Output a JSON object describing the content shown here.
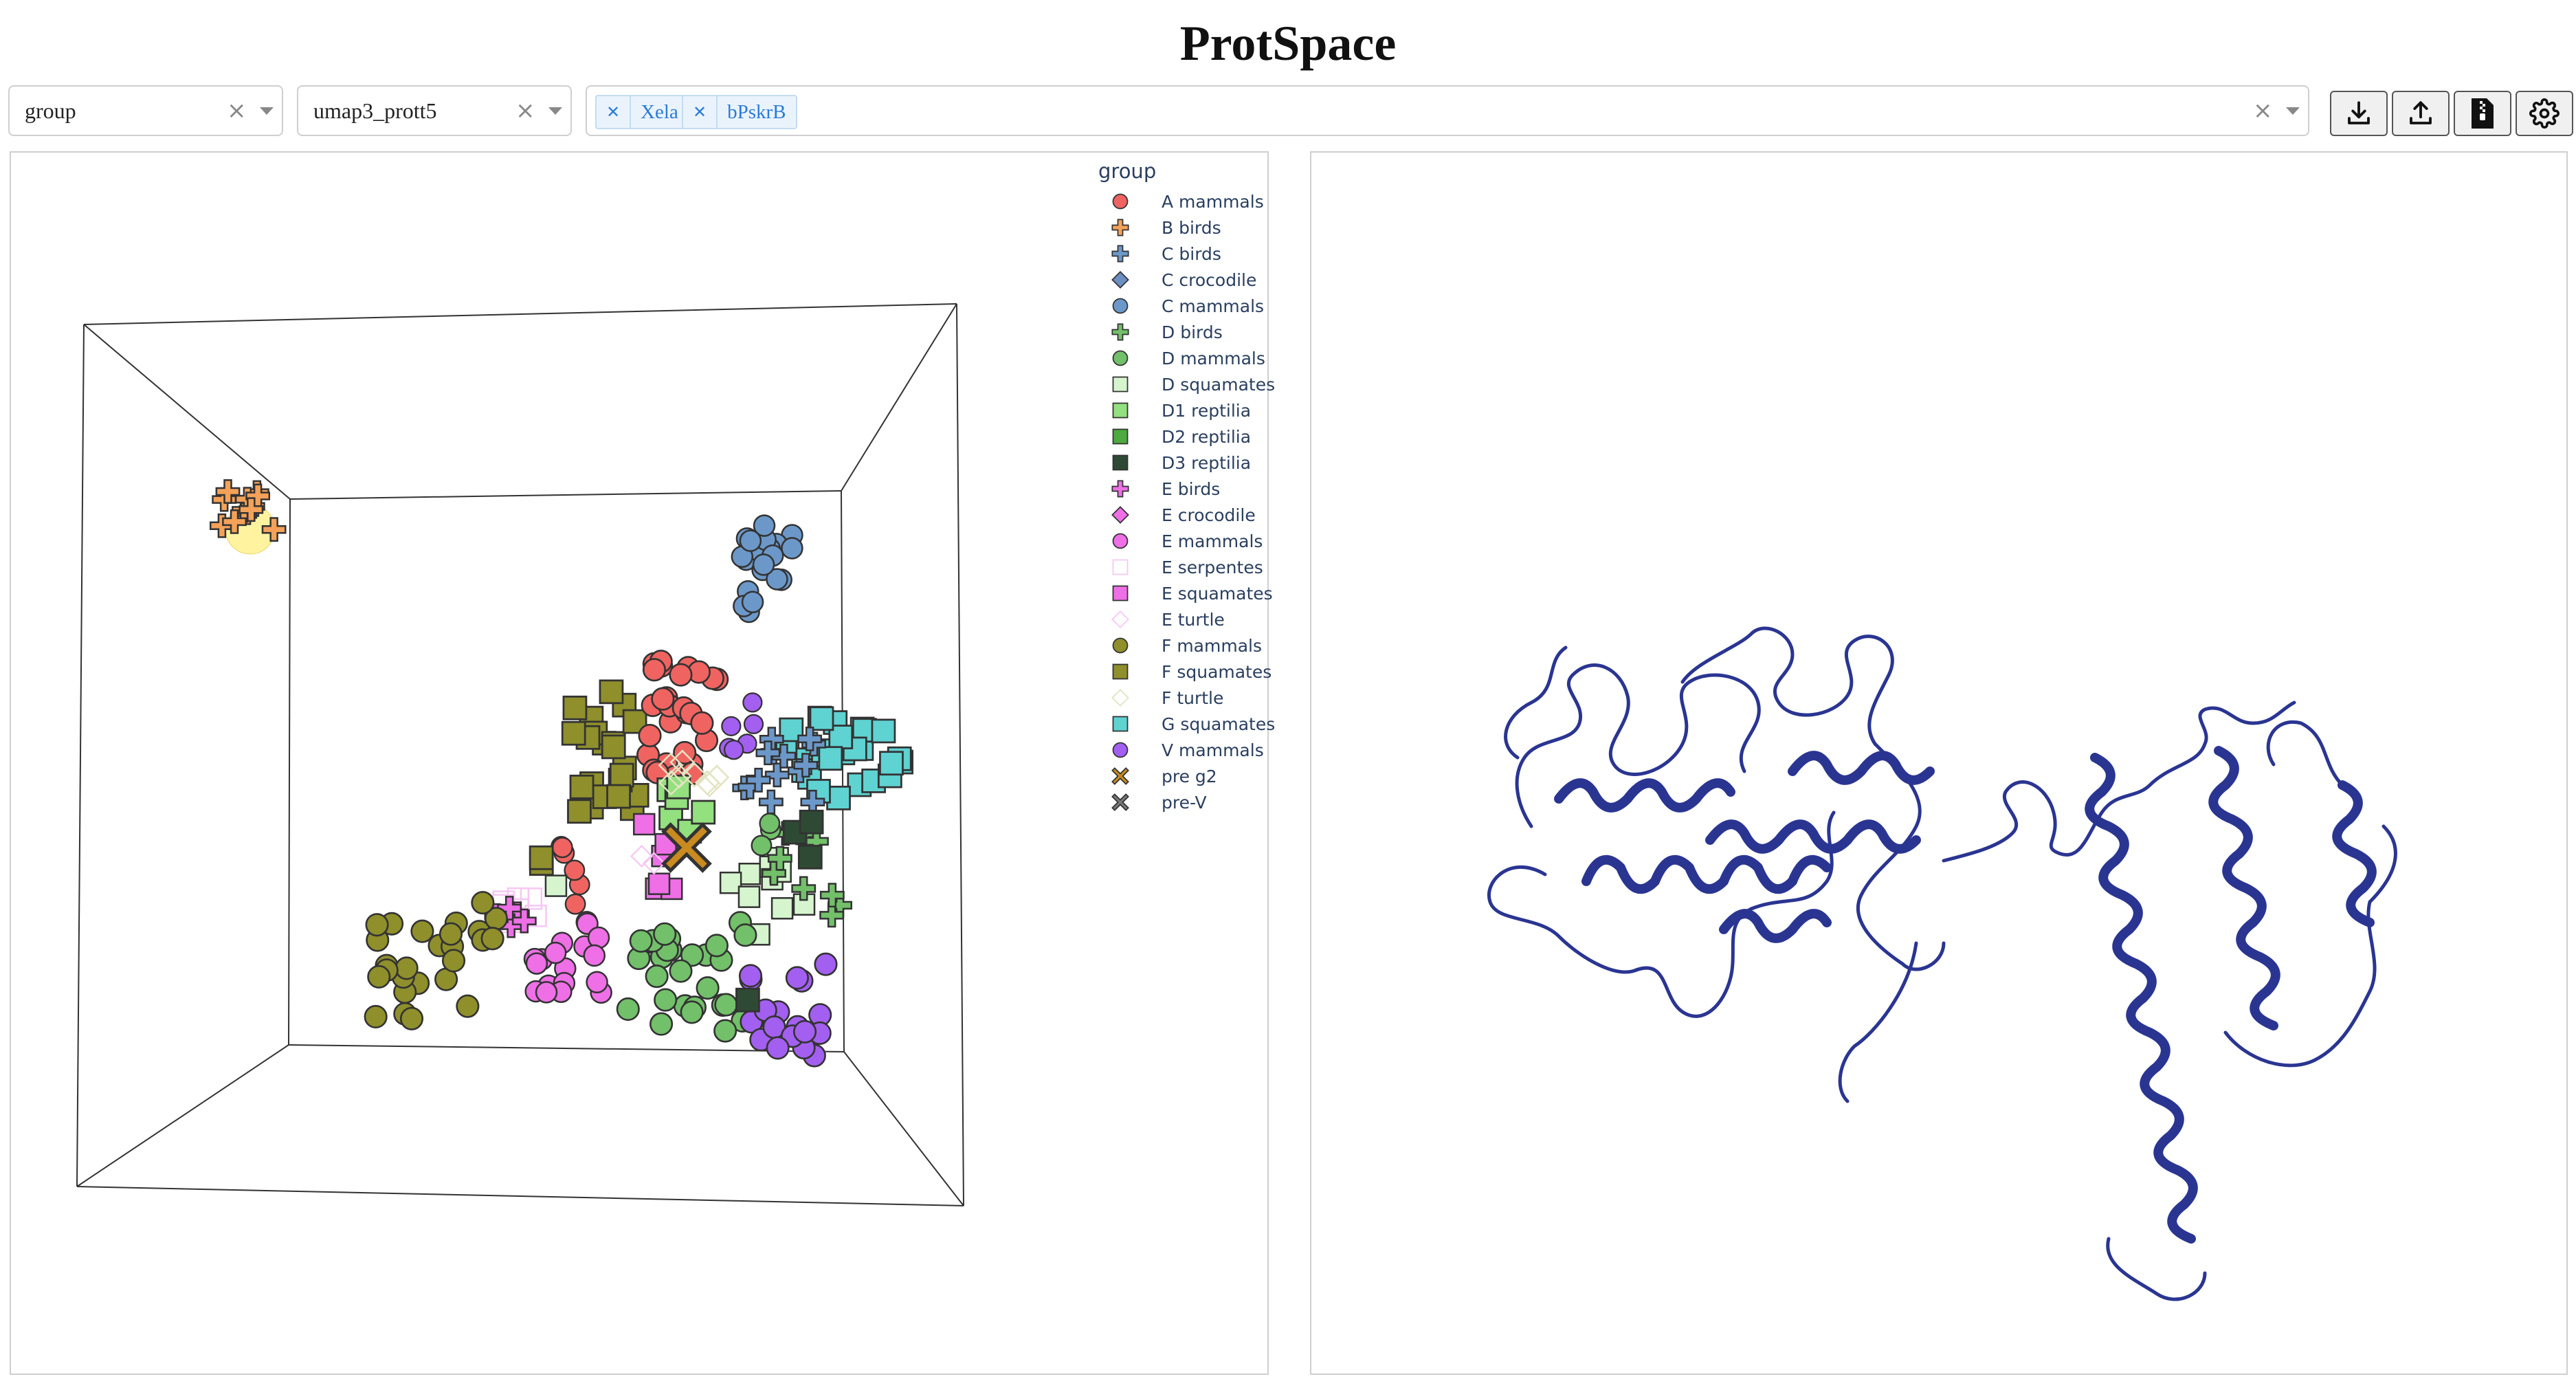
{
  "app": {
    "title": "ProtSpace"
  },
  "controls": {
    "feature_dropdown": {
      "value": "group"
    },
    "projection_dropdown": {
      "value": "umap3_prott5"
    },
    "protein_search": {
      "tags": [
        "Xela",
        "bPskrB"
      ]
    }
  },
  "toolbar": {
    "buttons": [
      {
        "name": "download-icon"
      },
      {
        "name": "upload-icon"
      },
      {
        "name": "download-file-icon"
      },
      {
        "name": "gear-icon"
      }
    ]
  },
  "legend": {
    "title": "group",
    "items": [
      {
        "label": "A mammals",
        "symbol": "circle",
        "color": "#ef6461",
        "fill": true
      },
      {
        "label": "B birds",
        "symbol": "cross",
        "color": "#f4a259",
        "fill": true
      },
      {
        "label": "C birds",
        "symbol": "cross",
        "color": "#6c98c9",
        "fill": true
      },
      {
        "label": "C crocodile",
        "symbol": "diamond",
        "color": "#6c8ec2",
        "fill": true
      },
      {
        "label": "C mammals",
        "symbol": "circle",
        "color": "#6c98c9",
        "fill": true
      },
      {
        "label": "D birds",
        "symbol": "cross",
        "color": "#72c06a",
        "fill": true
      },
      {
        "label": "D mammals",
        "symbol": "circle",
        "color": "#72c06a",
        "fill": true
      },
      {
        "label": "D squamates",
        "symbol": "square",
        "color": "#d6f5cf",
        "fill": true
      },
      {
        "label": "D1 reptilia",
        "symbol": "square",
        "color": "#93e07e",
        "fill": true
      },
      {
        "label": "D2 reptilia",
        "symbol": "square",
        "color": "#4caa3e",
        "fill": true
      },
      {
        "label": "D3 reptilia",
        "symbol": "square",
        "color": "#2f4a34",
        "fill": true
      },
      {
        "label": "E birds",
        "symbol": "cross",
        "color": "#ee6fe6",
        "fill": true
      },
      {
        "label": "E crocodile",
        "symbol": "diamond",
        "color": "#ee6fe6",
        "fill": true
      },
      {
        "label": "E mammals",
        "symbol": "circle",
        "color": "#ee6fe6",
        "fill": true
      },
      {
        "label": "E serpentes",
        "symbol": "square",
        "color": "#f7c7f3",
        "fill": false
      },
      {
        "label": "E squamates",
        "symbol": "square",
        "color": "#ee6fe6",
        "fill": true
      },
      {
        "label": "E turtle",
        "symbol": "diamond",
        "color": "#f7c7f3",
        "fill": false
      },
      {
        "label": "F mammals",
        "symbol": "circle",
        "color": "#8f8f2c",
        "fill": true
      },
      {
        "label": "F squamates",
        "symbol": "square",
        "color": "#8f8f2c",
        "fill": true
      },
      {
        "label": "F turtle",
        "symbol": "diamond",
        "color": "#e3e3c2",
        "fill": false
      },
      {
        "label": "G squamates",
        "symbol": "square",
        "color": "#5fd2d2",
        "fill": true
      },
      {
        "label": "V mammals",
        "symbol": "circle",
        "color": "#a35ff0",
        "fill": true
      },
      {
        "label": "pre g2",
        "symbol": "x",
        "color": "#c98a1f",
        "fill": true
      },
      {
        "label": "pre-V",
        "symbol": "x",
        "color": "#777777",
        "fill": true
      }
    ]
  },
  "colors": {
    "structure_ribbon": "#2a3592",
    "highlight": "#fff3a0"
  }
}
